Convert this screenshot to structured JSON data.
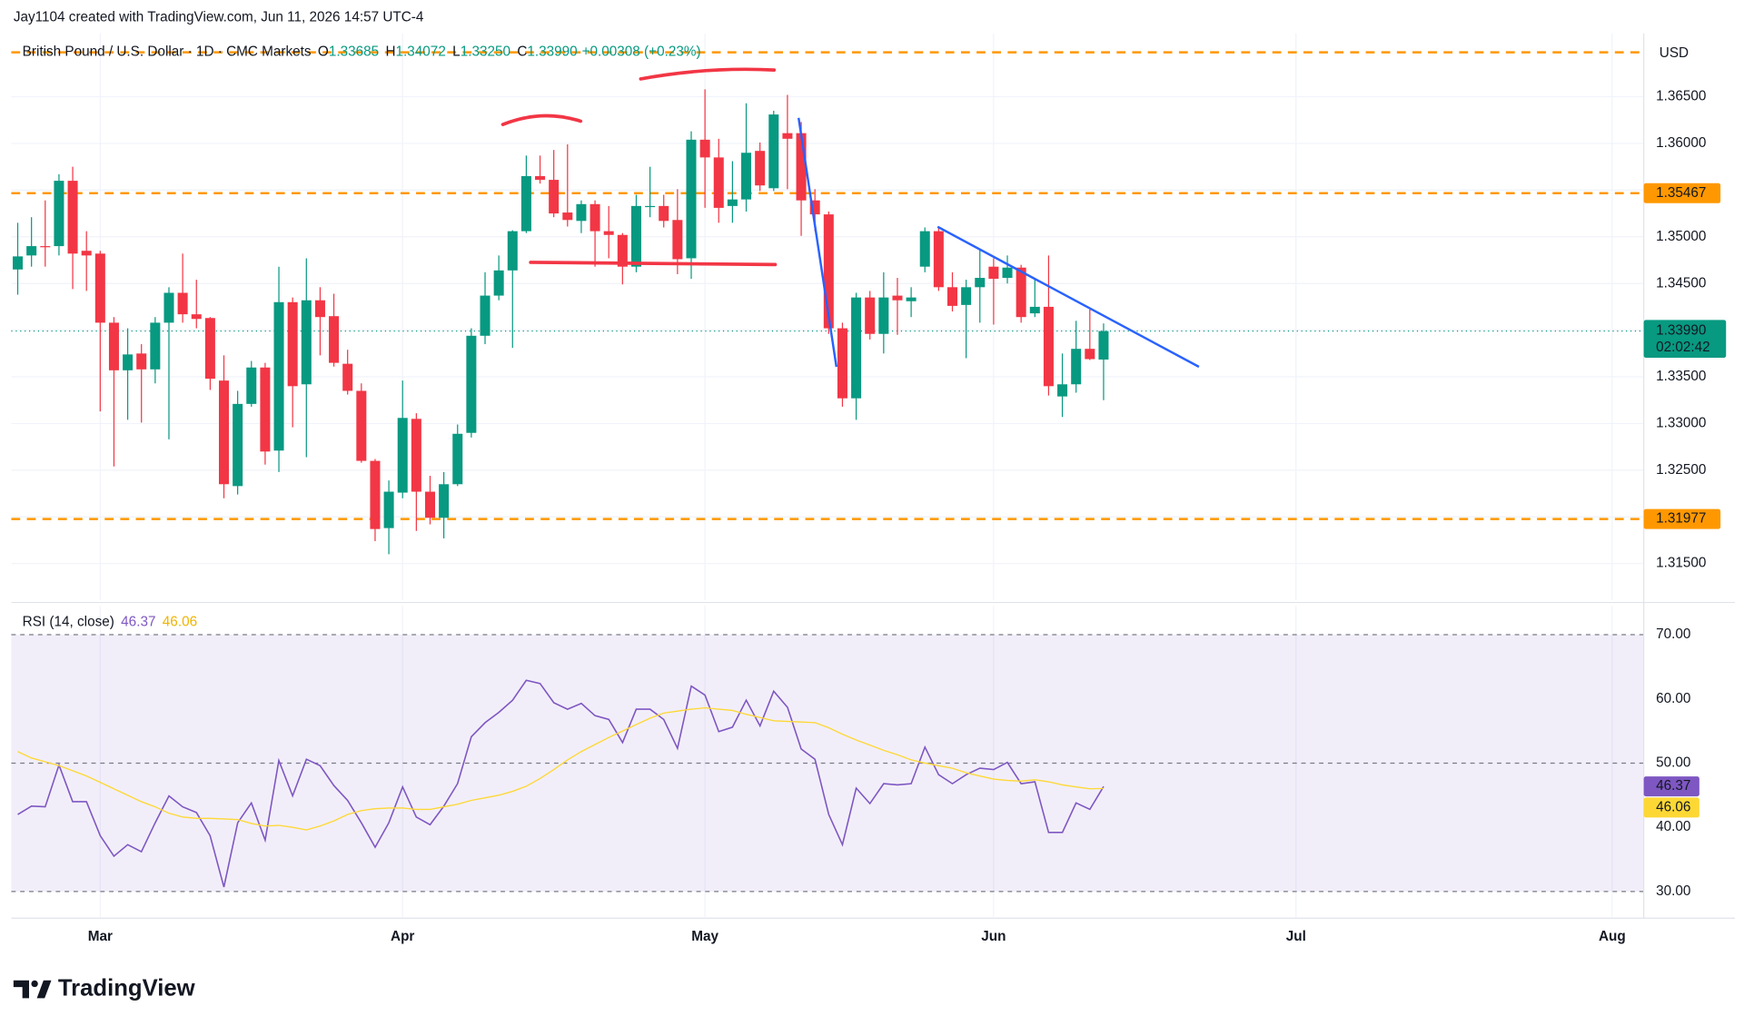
{
  "header": {
    "attribution": "Jay1104 created with TradingView.com, Jun 11, 2026 14:57 UTC-4",
    "logo": "TradingView"
  },
  "chart_data": [
    {
      "type": "candlestick",
      "title": "British Pound / U.S. Dollar · 1D · CMC Markets",
      "ohlc_legend": [
        {
          "key": "O",
          "value": "1.33685"
        },
        {
          "key": "H",
          "value": "1.34072"
        },
        {
          "key": "L",
          "value": "1.33250"
        },
        {
          "key": "C",
          "value": "1.33990"
        }
      ],
      "change": "+0.00308 (+0.23%)",
      "currency": "USD",
      "open": [
        1.3465,
        1.348,
        1.349,
        1.349,
        1.356,
        1.3485,
        1.3482,
        1.3408,
        1.3357,
        1.3375,
        1.3358,
        1.3408,
        1.344,
        1.3417,
        1.3413,
        1.3346,
        1.3233,
        1.3321,
        1.336,
        1.3271,
        1.343,
        1.3342,
        1.3432,
        1.3415,
        1.3364,
        1.3335,
        1.326,
        1.3188,
        1.3226,
        1.3305,
        1.3227,
        1.3199,
        1.3235,
        1.329,
        1.3394,
        1.3437,
        1.3464,
        1.3506,
        1.3565,
        1.3561,
        1.3526,
        1.3517,
        1.3535,
        1.3506,
        1.3502,
        1.3468,
        1.3532,
        1.3533,
        1.3518,
        1.3477,
        1.3604,
        1.3585,
        1.3533,
        1.354,
        1.3592,
        1.3552,
        1.3611,
        1.3611,
        1.3539,
        1.3524,
        1.3402,
        1.3327,
        1.3435,
        1.3396,
        1.3437,
        1.3431,
        1.3468,
        1.3506,
        1.3446,
        1.3427,
        1.3446,
        1.3468,
        1.3456,
        1.3467,
        1.3418,
        1.3425,
        1.3329,
        1.3342,
        1.338,
        1.33685
      ],
      "high": [
        1.3515,
        1.3521,
        1.3539,
        1.3567,
        1.3575,
        1.3506,
        1.3485,
        1.3414,
        1.3402,
        1.3385,
        1.3414,
        1.3446,
        1.3482,
        1.3454,
        1.3414,
        1.3373,
        1.3335,
        1.3367,
        1.3365,
        1.3468,
        1.3435,
        1.3477,
        1.3446,
        1.3439,
        1.3379,
        1.3343,
        1.3262,
        1.3239,
        1.3346,
        1.3311,
        1.3244,
        1.3248,
        1.3299,
        1.3402,
        1.3462,
        1.348,
        1.3507,
        1.3587,
        1.3587,
        1.3593,
        1.3599,
        1.3539,
        1.3539,
        1.3533,
        1.3504,
        1.3545,
        1.3575,
        1.3545,
        1.3551,
        1.3613,
        1.3658,
        1.3605,
        1.3581,
        1.3643,
        1.3601,
        1.3635,
        1.3652,
        1.3623,
        1.3551,
        1.3527,
        1.3408,
        1.344,
        1.3442,
        1.3462,
        1.3456,
        1.3446,
        1.351,
        1.351,
        1.3462,
        1.3454,
        1.3486,
        1.3477,
        1.348,
        1.347,
        1.3456,
        1.348,
        1.3375,
        1.341,
        1.3422,
        1.34072
      ],
      "low": [
        1.3438,
        1.3468,
        1.3468,
        1.348,
        1.3444,
        1.3442,
        1.3313,
        1.3254,
        1.3304,
        1.3301,
        1.3343,
        1.3283,
        1.3408,
        1.3402,
        1.3336,
        1.322,
        1.3224,
        1.3318,
        1.3256,
        1.3248,
        1.3296,
        1.3264,
        1.3373,
        1.3361,
        1.3331,
        1.3258,
        1.3174,
        1.316,
        1.322,
        1.3185,
        1.3192,
        1.3177,
        1.3233,
        1.3285,
        1.3385,
        1.3432,
        1.3381,
        1.3504,
        1.3557,
        1.3521,
        1.3511,
        1.3504,
        1.3468,
        1.3477,
        1.3449,
        1.3462,
        1.3521,
        1.351,
        1.346,
        1.3455,
        1.3531,
        1.3515,
        1.3515,
        1.3527,
        1.3549,
        1.3549,
        1.3551,
        1.3501,
        1.3506,
        1.3396,
        1.3318,
        1.3304,
        1.339,
        1.3375,
        1.3395,
        1.3414,
        1.3462,
        1.3442,
        1.342,
        1.337,
        1.3408,
        1.3406,
        1.345,
        1.3408,
        1.3414,
        1.333,
        1.3307,
        1.3333,
        1.3368,
        1.3325
      ],
      "close": [
        1.3479,
        1.349,
        1.3489,
        1.356,
        1.3482,
        1.348,
        1.3408,
        1.3357,
        1.3374,
        1.3358,
        1.3408,
        1.344,
        1.3417,
        1.3412,
        1.3348,
        1.3235,
        1.3321,
        1.336,
        1.327,
        1.343,
        1.334,
        1.3432,
        1.3414,
        1.3365,
        1.3335,
        1.326,
        1.3187,
        1.3227,
        1.3306,
        1.3227,
        1.3199,
        1.3235,
        1.3289,
        1.3394,
        1.3437,
        1.3464,
        1.3506,
        1.3565,
        1.3561,
        1.3525,
        1.3518,
        1.3535,
        1.3506,
        1.3502,
        1.3468,
        1.3533,
        1.3533,
        1.3517,
        1.3476,
        1.3604,
        1.3585,
        1.3531,
        1.354,
        1.359,
        1.3555,
        1.3631,
        1.3605,
        1.3539,
        1.3524,
        1.3402,
        1.3327,
        1.3435,
        1.3396,
        1.3435,
        1.3432,
        1.3435,
        1.3506,
        1.3446,
        1.3426,
        1.3446,
        1.3456,
        1.3455,
        1.3467,
        1.3414,
        1.3425,
        1.334,
        1.3342,
        1.338,
        1.3369,
        1.3399
      ],
      "close_label": "1.33990",
      "countdown": "02:02:42",
      "up_color": "#089981",
      "down_color": "#f23645",
      "xlim": [
        -0.47,
        118.3
      ],
      "xticks": [
        {
          "value": 6,
          "label": "Mar"
        },
        {
          "value": 28,
          "label": "Apr"
        },
        {
          "value": 50,
          "label": "May"
        },
        {
          "value": 71,
          "label": "Jun"
        },
        {
          "value": 93,
          "label": "Jul"
        },
        {
          "value": 116,
          "label": "Aug"
        }
      ],
      "ylim": [
        1.31107,
        1.37179
      ],
      "yticks": [
        {
          "value": 1.315,
          "label": "1.31500"
        },
        {
          "value": 1.32,
          "label": "1.32000"
        },
        {
          "value": 1.325,
          "label": "1.32500"
        },
        {
          "value": 1.33,
          "label": "1.33000"
        },
        {
          "value": 1.335,
          "label": "1.33500"
        },
        {
          "value": 1.34,
          "label": "1.34000"
        },
        {
          "value": 1.345,
          "label": "1.34500"
        },
        {
          "value": 1.35,
          "label": "1.35000"
        },
        {
          "value": 1.355,
          "label": "1.35500"
        },
        {
          "value": 1.36,
          "label": "1.36000"
        },
        {
          "value": 1.365,
          "label": "1.36500"
        }
      ],
      "levels": [
        {
          "value": 1.35467,
          "label": "1.35467"
        },
        {
          "value": 1.31977,
          "label": "1.31977"
        },
        1.36976
      ],
      "level_color": "#ff9800",
      "grid": true
    },
    {
      "type": "line",
      "title": "RSI (14, close)",
      "series": [
        {
          "color": "#7e57c2",
          "values": [
            42,
            43.3,
            43.2,
            49.7,
            44,
            44,
            38.7,
            35.5,
            37.3,
            36.2,
            40.7,
            44.9,
            43.2,
            42.3,
            38.7,
            30.7,
            40.7,
            43.8,
            38,
            50.4,
            44.9,
            50.6,
            49.6,
            46.5,
            44.2,
            40.7,
            36.9,
            40.7,
            46.3,
            41.6,
            40.4,
            43.3,
            46.8,
            54.1,
            56.3,
            57.9,
            59.8,
            62.9,
            62.4,
            59.4,
            58.4,
            59.3,
            57.4,
            56.8,
            53.2,
            58.4,
            58.4,
            56.8,
            52.3,
            62,
            60.6,
            54.9,
            55.6,
            59.8,
            55.8,
            61.2,
            58.7,
            52.2,
            50.6,
            42,
            37.3,
            46.1,
            43.7,
            46.8,
            46.6,
            46.8,
            52.5,
            48.2,
            46.8,
            48.2,
            49.2,
            49,
            50.1,
            46.8,
            47.1,
            39.2,
            39.2,
            43.8,
            42.8,
            46.37
          ]
        },
        {
          "color": "#fdd835",
          "values": [
            51.8,
            50.8,
            50.2,
            49.6,
            48.8,
            48,
            47,
            46,
            45,
            44,
            43.2,
            42.2,
            41.6,
            41.4,
            41.4,
            41.3,
            41.2,
            40.6,
            40.2,
            40.3,
            40,
            39.6,
            40.2,
            41,
            42,
            42.6,
            42.9,
            43,
            43,
            42.8,
            42.8,
            43.2,
            43.6,
            44.2,
            44.6,
            45,
            45.6,
            46.4,
            47.6,
            49,
            50.5,
            51.8,
            52.9,
            54,
            55,
            56,
            57,
            57.8,
            58.1,
            58.4,
            58.6,
            58.4,
            58.2,
            57.6,
            57.1,
            56.6,
            56.5,
            56.4,
            56.3,
            55.5,
            54.5,
            53.6,
            52.8,
            52,
            51.3,
            50.5,
            50,
            49.6,
            49.2,
            48.5,
            48,
            47.5,
            47.3,
            47.2,
            47.4,
            47.1,
            46.6,
            46.3,
            46,
            46.06
          ]
        }
      ],
      "ylim": [
        26.02,
        74.5
      ],
      "yticks": [
        {
          "value": 70,
          "label": "70.00"
        },
        {
          "value": 60,
          "label": "60.00"
        },
        {
          "value": 50,
          "label": "50.00"
        },
        {
          "value": 40,
          "label": "40.00"
        },
        {
          "value": 30,
          "label": "30.00"
        }
      ],
      "levels": [
        70,
        50,
        30
      ],
      "band": [
        30,
        70
      ],
      "band_color": "#7e57c2"
    }
  ]
}
